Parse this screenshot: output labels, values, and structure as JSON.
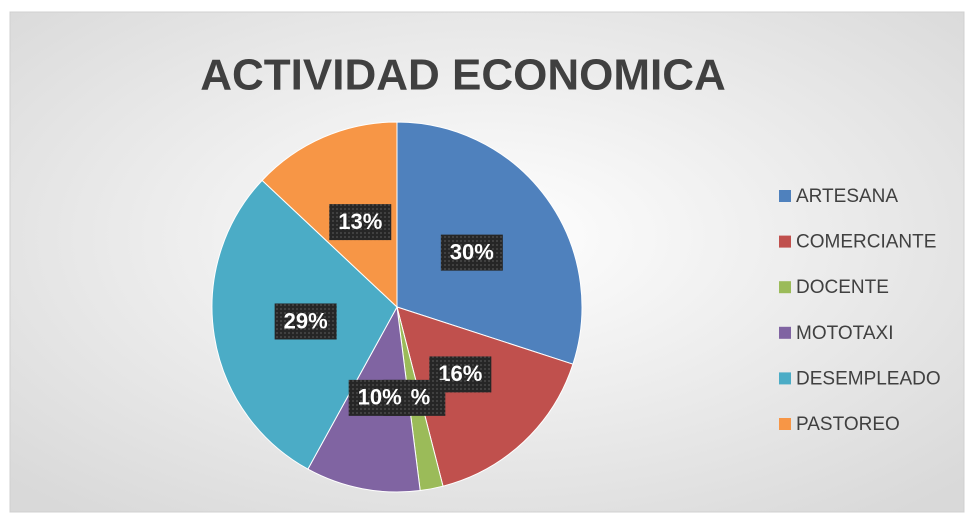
{
  "chart_data": {
    "type": "pie",
    "title": "ACTIVIDAD ECONOMICA",
    "categories": [
      "ARTESANA",
      "COMERCIANTE",
      "DOCENTE",
      "MOTOTAXI",
      "DESEMPLEADO",
      "PASTOREO"
    ],
    "values": [
      30,
      16,
      2,
      10,
      29,
      13
    ],
    "value_labels": [
      "30%",
      "16%",
      "2%",
      "10%",
      "29%",
      "13%"
    ],
    "colors": [
      "#4f81bd",
      "#c0504d",
      "#9bbb59",
      "#8064a2",
      "#4bacc6",
      "#f79646"
    ],
    "legend": "right"
  }
}
